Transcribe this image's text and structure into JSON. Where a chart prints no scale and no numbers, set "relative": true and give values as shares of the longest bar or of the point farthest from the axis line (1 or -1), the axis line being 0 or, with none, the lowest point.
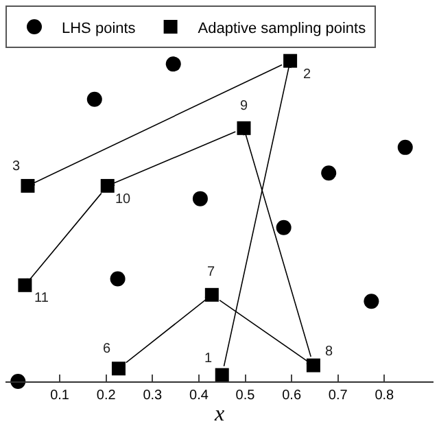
{
  "chart_data": {
    "type": "scatter",
    "xlabel": "x",
    "relative": true,
    "xlim": [
      -0.017,
      0.906
    ],
    "xticks": [
      0.1,
      0.2,
      0.3,
      0.4,
      0.5,
      0.6,
      0.7,
      0.8
    ],
    "legend": "top",
    "series": [
      {
        "name": "LHS points",
        "color": "#000000",
        "marker": "circle",
        "x": [
          0.345,
          0.175,
          0.845,
          0.68,
          0.403,
          0.583,
          0.225,
          0.772,
          0.01
        ],
        "values": [
          0.99,
          0.88,
          0.73,
          0.65,
          0.57,
          0.48,
          0.32,
          0.25,
          0.0
        ]
      },
      {
        "name": "Adaptive sampling points",
        "color": "#000000",
        "marker": "square",
        "x": [
          0.45,
          0.597,
          0.031,
          null,
          null,
          0.227,
          0.428,
          0.647,
          0.497,
          0.203,
          0.025
        ],
        "values": [
          0.02,
          1.0,
          0.61,
          null,
          null,
          0.04,
          0.27,
          0.05,
          0.79,
          0.61,
          0.3
        ]
      }
    ],
    "annotations": [
      {
        "text": "1",
        "x": 0.45,
        "y": 0.02
      },
      {
        "text": "2",
        "x": 0.597,
        "y": 1.0
      },
      {
        "text": "3",
        "x": 0.031,
        "y": 0.61
      },
      {
        "text": "6",
        "x": 0.227,
        "y": 0.04
      },
      {
        "text": "7",
        "x": 0.428,
        "y": 0.27
      },
      {
        "text": "8",
        "x": 0.647,
        "y": 0.05
      },
      {
        "text": "9",
        "x": 0.497,
        "y": 0.79
      },
      {
        "text": "10",
        "x": 0.203,
        "y": 0.61
      },
      {
        "text": "11",
        "x": 0.025,
        "y": 0.3
      }
    ]
  }
}
